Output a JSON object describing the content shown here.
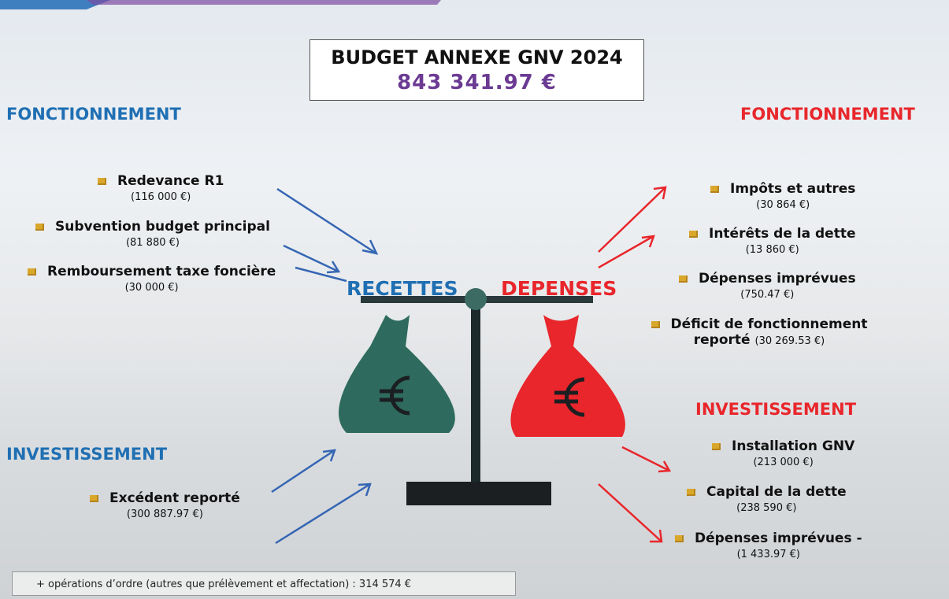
{
  "header": {
    "title": "BUDGET ANNEXE GNV 2024",
    "total": "843 341.97 €"
  },
  "recettes": {
    "label": "RECETTES",
    "fonctionnement": {
      "title": "FONCTIONNEMENT",
      "items": [
        {
          "label": "Redevance R1",
          "amount": "(116 000 €)"
        },
        {
          "label": "Subvention budget principal",
          "amount": "(81 880 €)"
        },
        {
          "label": "Remboursement taxe foncière",
          "amount": "(30 000 €)"
        }
      ]
    },
    "investissement": {
      "title": "INVESTISSEMENT",
      "items": [
        {
          "label": "Excédent reporté",
          "amount": "(300 887.97 €)"
        }
      ]
    }
  },
  "depenses": {
    "label": "DEPENSES",
    "fonctionnement": {
      "title": "FONCTIONNEMENT",
      "items": [
        {
          "label": "Impôts et autres",
          "amount": "(30 864 €)"
        },
        {
          "label": "Intérêts de la dette",
          "amount": "(13 860 €)"
        },
        {
          "label": "Dépenses imprévues",
          "amount": "(750.47 €)"
        },
        {
          "label": "Déficit de fonctionnement reporté",
          "amount": "(30 269.53 €)"
        }
      ]
    },
    "investissement": {
      "title": "INVESTISSEMENT",
      "items": [
        {
          "label": "Installation GNV",
          "amount": "(213 000 €)"
        },
        {
          "label": "Capital de la dette",
          "amount": "(238 590 €)"
        },
        {
          "label": "Dépenses imprévues -",
          "amount": "(1 433.97 €)"
        }
      ]
    }
  },
  "footer": "+ opérations d’ordre (autres que prélèvement et affectation) : 314 574 €"
}
